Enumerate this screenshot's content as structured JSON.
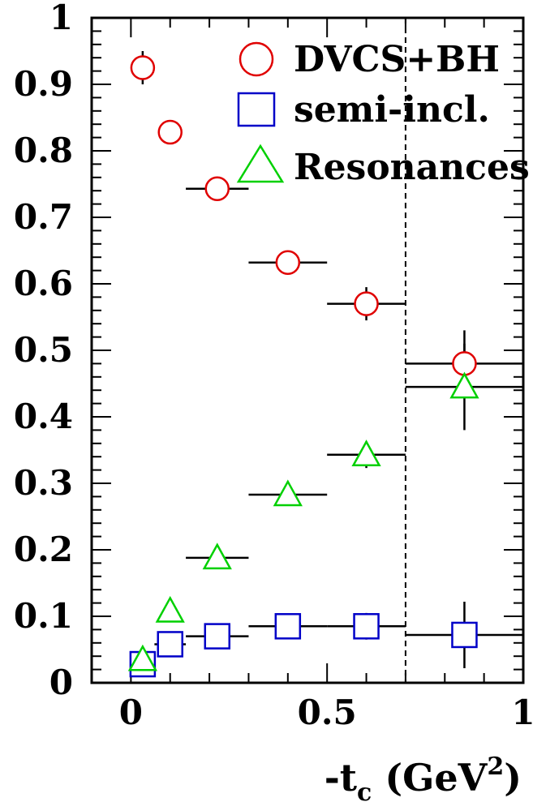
{
  "chart_data": {
    "type": "scatter",
    "title": "",
    "xlabel": "-t",
    "xlabel_subscript": "c",
    "xlabel_unit_open": " (GeV",
    "xlabel_unit_sup": "2",
    "xlabel_unit_close": ")",
    "ylabel": "",
    "xlim": [
      -0.1,
      1.0
    ],
    "ylim": [
      0,
      1.0
    ],
    "x_ticks": [
      "0",
      "0.5",
      "1"
    ],
    "x_tick_values": [
      0,
      0.5,
      1
    ],
    "y_ticks": [
      "0",
      "0.1",
      "0.2",
      "0.3",
      "0.4",
      "0.5",
      "0.6",
      "0.7",
      "0.8",
      "0.9",
      "1"
    ],
    "y_tick_values": [
      0,
      0.1,
      0.2,
      0.3,
      0.4,
      0.5,
      0.6,
      0.7,
      0.8,
      0.9,
      1.0
    ],
    "vertical_line_x": 0.7,
    "legend_position": "top-right",
    "series": [
      {
        "name": "DVCS+BH",
        "marker": "circle",
        "color": "#e00000",
        "points": [
          {
            "x": 0.03,
            "y": 0.925,
            "xerr": 0.0,
            "yerr": 0.025
          },
          {
            "x": 0.1,
            "y": 0.828,
            "xerr": 0.0,
            "yerr": 0.01
          },
          {
            "x": 0.22,
            "y": 0.743,
            "xerr": 0.08,
            "yerr": 0.0
          },
          {
            "x": 0.4,
            "y": 0.632,
            "xerr": 0.1,
            "yerr": 0.0
          },
          {
            "x": 0.6,
            "y": 0.57,
            "xerr": 0.1,
            "yerr": 0.025
          },
          {
            "x": 0.85,
            "y": 0.48,
            "xerr": 0.15,
            "yerr": 0.05
          }
        ]
      },
      {
        "name": "semi-incl.",
        "marker": "square",
        "color": "#0000c8",
        "points": [
          {
            "x": 0.03,
            "y": 0.028,
            "xerr": 0.0,
            "yerr": 0.01
          },
          {
            "x": 0.1,
            "y": 0.058,
            "xerr": 0.04,
            "yerr": 0.0
          },
          {
            "x": 0.22,
            "y": 0.07,
            "xerr": 0.08,
            "yerr": 0.0
          },
          {
            "x": 0.4,
            "y": 0.085,
            "xerr": 0.1,
            "yerr": 0.0
          },
          {
            "x": 0.6,
            "y": 0.085,
            "xerr": 0.1,
            "yerr": 0.02
          },
          {
            "x": 0.85,
            "y": 0.072,
            "xerr": 0.15,
            "yerr": 0.05
          }
        ]
      },
      {
        "name": "Resonances",
        "marker": "triangle",
        "color": "#00d000",
        "points": [
          {
            "x": 0.03,
            "y": 0.035,
            "xerr": 0.0,
            "yerr": 0.0
          },
          {
            "x": 0.1,
            "y": 0.108,
            "xerr": 0.0,
            "yerr": 0.01
          },
          {
            "x": 0.22,
            "y": 0.188,
            "xerr": 0.08,
            "yerr": 0.0
          },
          {
            "x": 0.4,
            "y": 0.283,
            "xerr": 0.1,
            "yerr": 0.0
          },
          {
            "x": 0.6,
            "y": 0.343,
            "xerr": 0.1,
            "yerr": 0.02
          },
          {
            "x": 0.85,
            "y": 0.445,
            "xerr": 0.15,
            "yerr": 0.065
          }
        ]
      }
    ]
  }
}
